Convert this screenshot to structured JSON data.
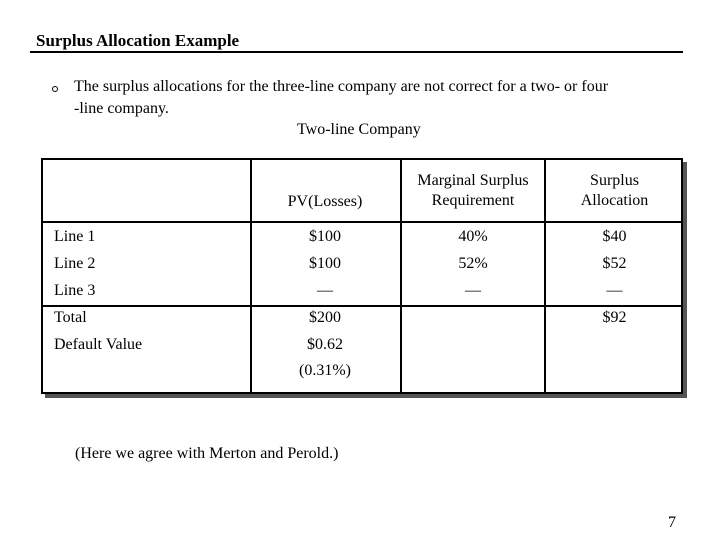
{
  "slide": {
    "title": "Surplus Allocation Example",
    "bullet_line1": "The surplus allocations for the three-line company are not correct for a two- or four",
    "bullet_line2": "-line company.",
    "table_caption": "Two-line Company",
    "footnote": "(Here we agree with Merton and Perold.)",
    "page_number": "7"
  },
  "table": {
    "headers": {
      "pv": "PV(Losses)",
      "msr_line1": "Marginal Surplus",
      "msr_line2": "Requirement",
      "alloc_line1": "Surplus",
      "alloc_line2": "Allocation"
    },
    "rows": [
      {
        "label": "Line 1",
        "pv": "$100",
        "msr": "40%",
        "alloc": "$40"
      },
      {
        "label": "Line 2",
        "pv": "$100",
        "msr": "52%",
        "alloc": "$52"
      },
      {
        "label": "Line 3",
        "pv": "—",
        "msr": "—",
        "alloc": "—"
      }
    ],
    "total": {
      "label": "Total",
      "pv": "$200",
      "alloc": "$92"
    },
    "default_value": {
      "label": "Default Value",
      "pv": "$0.62",
      "pv_pct": "(0.31%)"
    }
  }
}
